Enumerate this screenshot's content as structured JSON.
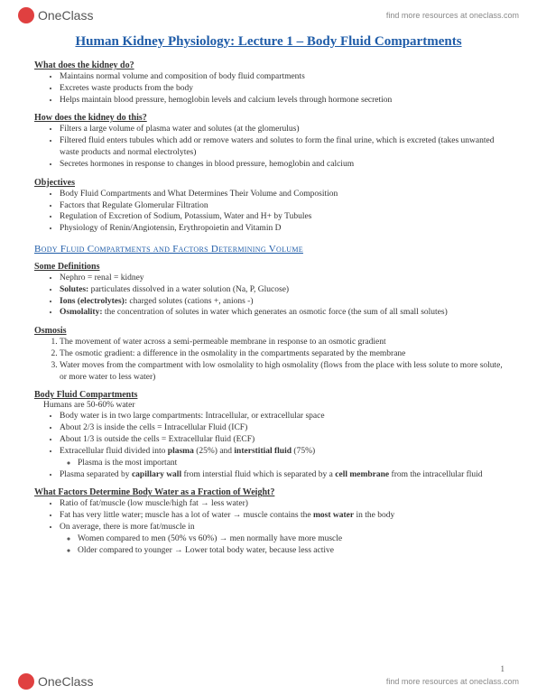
{
  "header": {
    "logo_text": "OneClass",
    "link_text": "find more resources at oneclass.com"
  },
  "title": "Human Kidney Physiology: Lecture 1 – Body Fluid Compartments",
  "sections": {
    "what_does": {
      "heading": "What does the kidney do?",
      "items": [
        "Maintains normal volume and composition of body fluid compartments",
        "Excretes waste products from the body",
        "Helps maintain blood pressure, hemoglobin levels and calcium levels through hormone secretion"
      ]
    },
    "how_does": {
      "heading": "How does the kidney do this?",
      "items": [
        "Filters a large volume of plasma water and solutes (at the glomerulus)",
        "Filtered fluid enters tubules which add or remove waters and solutes to form the final urine, which is excreted (takes unwanted waste products and normal electrolytes)",
        "Secretes hormones in response to changes in blood pressure, hemoglobin and calcium"
      ]
    },
    "objectives": {
      "heading": "Objectives",
      "items": [
        "Body Fluid Compartments and What Determines Their Volume and Composition",
        "Factors that Regulate Glomerular Filtration",
        "Regulation of Excretion of Sodium, Potassium, Water and H+ by Tubules",
        "Physiology of Renin/Angiotensin, Erythropoietin and Vitamin D"
      ]
    },
    "subsection_title": "Body Fluid Compartments and Factors Determining Volume",
    "definitions": {
      "heading": "Some Definitions",
      "items": [
        {
          "text": "Nephro = renal = kidney"
        },
        {
          "term": "Solutes:",
          "text": " particulates dissolved in a water solution (Na, P, Glucose)"
        },
        {
          "term": "Ions (electrolytes):",
          "text": " charged solutes (cations +, anions -)"
        },
        {
          "term": "Osmolality:",
          "text": " the concentration of solutes in water which generates an osmotic force (the sum of all small solutes)"
        }
      ]
    },
    "osmosis": {
      "heading": "Osmosis",
      "items": [
        "The movement of water across a semi-permeable membrane in response to an osmotic gradient",
        "The osmotic gradient: a difference in the osmolality in the compartments separated by the membrane",
        "Water moves from the compartment with low osmolality to high osmolality (flows from the place with less solute to more solute, or more water to less water)"
      ]
    },
    "compartments": {
      "heading": "Body Fluid Compartments",
      "caption": "Humans are 50-60% water",
      "items": {
        "i0": "Body water is in two large compartments: Intracellular, or extracellular space",
        "i1": "About 2/3 is inside the cells = Intracellular Fluid (ICF)",
        "i2": "About 1/3 is outside the cells = Extracellular fluid (ECF)",
        "i3_pre": "Extracellular fluid divided into ",
        "i3_b1": "plasma",
        "i3_mid": " (25%) and ",
        "i3_b2": "interstitial fluid",
        "i3_post": " (75%)",
        "i3_sub": "Plasma is the most important",
        "i4_pre": "Plasma separated by ",
        "i4_b1": "capillary wall",
        "i4_mid": " from interstial fluid which is separated by a ",
        "i4_b2": "cell membrane",
        "i4_post": " from the intracellular fluid"
      }
    },
    "factors": {
      "heading": "What Factors Determine Body Water as a Fraction of Weight?",
      "items": {
        "i0": "Ratio of fat/muscle (low muscle/high fat → less water)",
        "i1_pre": "Fat has very little water; muscle has a lot of water → muscle contains the ",
        "i1_b": "most water",
        "i1_post": " in the body",
        "i2": "On average, there is more fat/muscle in",
        "i2_sub1": "Women compared to men (50% vs 60%) → men normally have more muscle",
        "i2_sub2": "Older compared to younger → Lower total body water, because less active"
      }
    }
  },
  "footer": {
    "logo_text": "OneClass",
    "link_text": "find more resources at oneclass.com",
    "page_number": "1"
  },
  "colors": {
    "title_color": "#1f5ca8",
    "text_color": "#333333",
    "logo_red": "#e04040",
    "link_gray": "#888888",
    "background": "#ffffff"
  }
}
